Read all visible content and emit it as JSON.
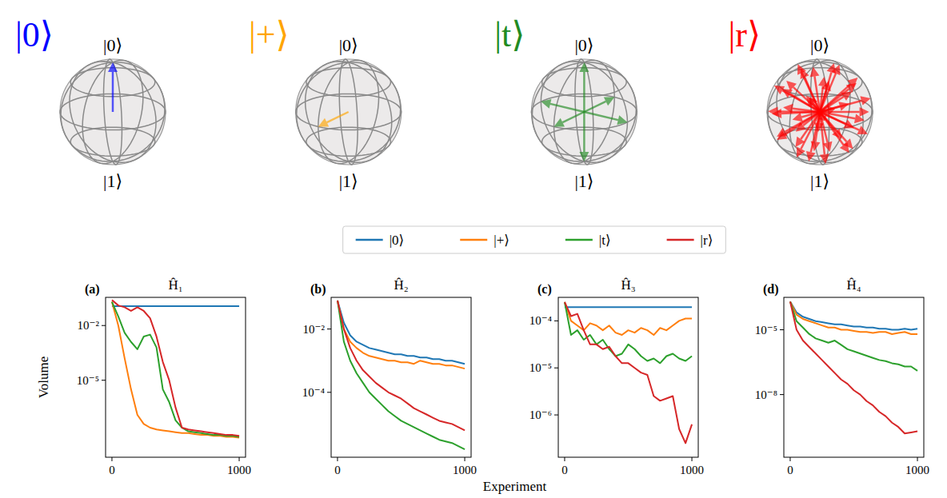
{
  "states": [
    {
      "label": "|0⟩",
      "color": "#0000ff",
      "north": "|0⟩",
      "south": "|1⟩"
    },
    {
      "label": "|+⟩",
      "color": "#ffa500",
      "north": "|0⟩",
      "south": "|1⟩"
    },
    {
      "label": "|t⟩",
      "color": "#228b22",
      "north": "|0⟩",
      "south": "|1⟩"
    },
    {
      "label": "|r⟩",
      "color": "#ff0000",
      "north": "|0⟩",
      "south": "|1⟩"
    }
  ],
  "x_label": "Experiment",
  "chart_data": [
    {
      "type": "line",
      "title": "Ĥ₁",
      "panel_label": "(a)",
      "y_label": "Volume",
      "log": "y",
      "legend": "top",
      "x": [
        0,
        50,
        100,
        150,
        200,
        250,
        300,
        350,
        400,
        450,
        500,
        550,
        600,
        650,
        700,
        750,
        800,
        850,
        900,
        950,
        1000
      ],
      "xlim": [
        -50,
        1050
      ],
      "xticks": [
        0,
        1000
      ],
      "ylim": [
        6e-10,
        0.35
      ],
      "yticks": [
        {
          "value": 0.01,
          "label": "10⁻²"
        },
        {
          "value": 1e-05,
          "label": "10⁻⁵"
        }
      ],
      "series": [
        {
          "name": "|0⟩",
          "color": "#1f77b4",
          "values": [
            0.115,
            0.115,
            0.115,
            0.115,
            0.115,
            0.115,
            0.115,
            0.115,
            0.115,
            0.115,
            0.115,
            0.115,
            0.115,
            0.115,
            0.115,
            0.115,
            0.115,
            0.115,
            0.115,
            0.115,
            0.115
          ]
        },
        {
          "name": "|+⟩",
          "color": "#ff7f0e",
          "values": [
            0.2,
            0.01,
            0.000158,
            3.16e-06,
            1.26e-07,
            3.98e-08,
            2.51e-08,
            2e-08,
            1.78e-08,
            1.58e-08,
            1.41e-08,
            1.26e-08,
            1.26e-08,
            1.12e-08,
            1e-08,
            1e-08,
            8.91e-09,
            8.91e-09,
            7.94e-09,
            7.94e-09,
            7.08e-09
          ]
        },
        {
          "name": "|t⟩",
          "color": "#2ca02c",
          "values": [
            0.2,
            0.0316,
            0.00398,
            0.00126,
            0.000501,
            0.00251,
            0.00316,
            0.000631,
            3.16e-06,
            6.31e-07,
            6.31e-08,
            2.51e-08,
            1.58e-08,
            1.41e-08,
            1.26e-08,
            1.12e-08,
            1e-08,
            1e-08,
            8.91e-09,
            8.91e-09,
            7.94e-09
          ]
        },
        {
          "name": "|r⟩",
          "color": "#d62728",
          "values": [
            0.251,
            0.126,
            0.1,
            0.0631,
            0.1,
            0.0631,
            0.0251,
            0.00251,
            0.0001,
            1e-05,
            3.16e-07,
            2.51e-08,
            2e-08,
            1.78e-08,
            1.58e-08,
            1.41e-08,
            1.26e-08,
            1.12e-08,
            1e-08,
            1e-08,
            8.91e-09
          ]
        }
      ]
    },
    {
      "type": "line",
      "title": "Ĥ₂",
      "panel_label": "(b)",
      "log": "y",
      "x": [
        0,
        50,
        100,
        150,
        200,
        250,
        300,
        350,
        400,
        450,
        500,
        550,
        600,
        650,
        700,
        750,
        800,
        850,
        900,
        950,
        1000
      ],
      "xlim": [
        -50,
        1050
      ],
      "xticks": [
        0,
        1000
      ],
      "ylim": [
        8.9e-07,
        0.1
      ],
      "yticks": [
        {
          "value": 0.01,
          "label": "10⁻²"
        },
        {
          "value": 0.0001,
          "label": "10⁻⁴"
        }
      ],
      "series": [
        {
          "name": "|0⟩",
          "color": "#1f77b4",
          "values": [
            0.0794,
            0.0158,
            0.00631,
            0.00398,
            0.00316,
            0.00251,
            0.00224,
            0.002,
            0.00178,
            0.00158,
            0.00158,
            0.00141,
            0.00141,
            0.00126,
            0.00126,
            0.00112,
            0.00112,
            0.001,
            0.001,
            0.000891,
            0.000794
          ]
        },
        {
          "name": "|+⟩",
          "color": "#ff7f0e",
          "values": [
            0.0794,
            0.01,
            0.00398,
            0.00251,
            0.00178,
            0.00141,
            0.00126,
            0.00112,
            0.001,
            0.001,
            0.000891,
            0.000891,
            0.000794,
            0.001,
            0.000891,
            0.000794,
            0.000794,
            0.000708,
            0.000708,
            0.000631,
            0.000562
          ]
        },
        {
          "name": "|t⟩",
          "color": "#2ca02c",
          "values": [
            0.0794,
            0.00398,
            0.001,
            0.000398,
            0.0002,
            0.0001,
            6.31e-05,
            3.98e-05,
            2.51e-05,
            1.78e-05,
            1.26e-05,
            1e-05,
            7.94e-06,
            6.31e-06,
            5.01e-06,
            3.98e-06,
            3.16e-06,
            2.82e-06,
            2.51e-06,
            2e-06,
            1.58e-06
          ]
        },
        {
          "name": "|r⟩",
          "color": "#d62728",
          "values": [
            0.0794,
            0.01,
            0.00251,
            0.001,
            0.000501,
            0.000316,
            0.0002,
            0.000141,
            0.0001,
            7.94e-05,
            6.31e-05,
            4.47e-05,
            3.16e-05,
            2.51e-05,
            2e-05,
            1.58e-05,
            1.26e-05,
            1.12e-05,
            1e-05,
            7.94e-06,
            6.31e-06
          ]
        }
      ]
    },
    {
      "type": "line",
      "title": "Ĥ₃",
      "panel_label": "(c)",
      "log": "y",
      "x": [
        0,
        50,
        100,
        150,
        200,
        250,
        300,
        350,
        400,
        450,
        500,
        550,
        600,
        650,
        700,
        750,
        800,
        850,
        900,
        950,
        1000
      ],
      "xlim": [
        -50,
        1050
      ],
      "xticks": [
        0,
        1000
      ],
      "ylim": [
        1.26e-07,
        0.000316
      ],
      "yticks": [
        {
          "value": 0.0001,
          "label": "10⁻⁴"
        },
        {
          "value": 1e-05,
          "label": "10⁻⁵"
        },
        {
          "value": 1e-06,
          "label": "10⁻⁶"
        }
      ],
      "series": [
        {
          "name": "|0⟩",
          "color": "#1f77b4",
          "values": [
            0.000195,
            0.000195,
            0.000195,
            0.000195,
            0.000195,
            0.000195,
            0.000195,
            0.000195,
            0.000195,
            0.000195,
            0.000195,
            0.000195,
            0.000195,
            0.000195,
            0.000195,
            0.000195,
            0.000195,
            0.000195,
            0.000195,
            0.000195,
            0.000195
          ]
        },
        {
          "name": "|+⟩",
          "color": "#ff7f0e",
          "values": [
            0.000251,
            0.0001,
            7.94e-05,
            6.31e-05,
            8.91e-05,
            7.94e-05,
            6.31e-05,
            7.94e-05,
            5.62e-05,
            5.01e-05,
            6.31e-05,
            5.62e-05,
            7.08e-05,
            6.31e-05,
            5.01e-05,
            7.08e-05,
            6.31e-05,
            7.94e-05,
            0.0001,
            0.000112,
            0.000112
          ]
        },
        {
          "name": "|t⟩",
          "color": "#2ca02c",
          "values": [
            0.000251,
            5.01e-05,
            6.31e-05,
            3.98e-05,
            5.01e-05,
            3.16e-05,
            3.98e-05,
            2.51e-05,
            1.78e-05,
            2e-05,
            3.16e-05,
            2.51e-05,
            1.78e-05,
            1.41e-05,
            1.58e-05,
            1.26e-05,
            1.78e-05,
            2e-05,
            1.58e-05,
            1.41e-05,
            1.78e-05
          ]
        },
        {
          "name": "|r⟩",
          "color": "#d62728",
          "values": [
            0.000251,
            0.000126,
            0.000141,
            6.31e-05,
            3.16e-05,
            3.16e-05,
            2.51e-05,
            2.82e-05,
            1.78e-05,
            1.26e-05,
            1.26e-05,
            1e-05,
            7.94e-06,
            7.08e-06,
            2.51e-06,
            2e-06,
            2.24e-06,
            2.51e-06,
            5.01e-07,
            2.51e-07,
            6.31e-07
          ]
        }
      ]
    },
    {
      "type": "line",
      "title": "Ĥ₄",
      "panel_label": "(d)",
      "log": "y",
      "x": [
        0,
        50,
        100,
        150,
        200,
        250,
        300,
        350,
        400,
        450,
        500,
        550,
        600,
        650,
        700,
        750,
        800,
        850,
        900,
        950,
        1000
      ],
      "xlim": [
        -50,
        1050
      ],
      "xticks": [
        0,
        1000
      ],
      "ylim": [
        1.26e-11,
        0.000316
      ],
      "yticks": [
        {
          "value": 1e-05,
          "label": "10⁻⁵"
        },
        {
          "value": 1e-08,
          "label": "10⁻⁸"
        }
      ],
      "series": [
        {
          "name": "|0⟩",
          "color": "#1f77b4",
          "values": [
            0.0002,
            6.31e-05,
            3.98e-05,
            3.16e-05,
            2.51e-05,
            2.24e-05,
            2e-05,
            1.78e-05,
            1.78e-05,
            1.58e-05,
            1.41e-05,
            1.41e-05,
            1.26e-05,
            1.26e-05,
            1.12e-05,
            1.12e-05,
            1e-05,
            1e-05,
            1.12e-05,
            1e-05,
            1.12e-05
          ]
        },
        {
          "name": "|+⟩",
          "color": "#ff7f0e",
          "values": [
            0.0002,
            5.01e-05,
            3.16e-05,
            2.51e-05,
            2e-05,
            1.58e-05,
            1.26e-05,
            1.26e-05,
            1e-05,
            1e-05,
            8.91e-06,
            7.94e-06,
            7.94e-06,
            7.08e-06,
            7.94e-06,
            7.94e-06,
            6.31e-06,
            7.08e-06,
            7.94e-06,
            6.31e-06,
            6.31e-06
          ]
        },
        {
          "name": "|t⟩",
          "color": "#2ca02c",
          "values": [
            0.0002,
            2.51e-05,
            1.26e-05,
            6.31e-06,
            3.98e-06,
            3.16e-06,
            2.51e-06,
            3.16e-06,
            2e-06,
            1.26e-06,
            1e-06,
            7.94e-07,
            6.31e-07,
            5.01e-07,
            3.98e-07,
            3.55e-07,
            2.82e-07,
            2.51e-07,
            2e-07,
            2e-07,
            1.26e-07
          ]
        },
        {
          "name": "|r⟩",
          "color": "#d62728",
          "values": [
            0.0002,
            1e-05,
            3.16e-06,
            1.58e-06,
            7.94e-07,
            3.98e-07,
            2e-07,
            1e-07,
            5.01e-08,
            3.16e-08,
            1.58e-08,
            1e-08,
            5.01e-09,
            3.16e-09,
            1.58e-09,
            1e-09,
            5.01e-10,
            3.16e-10,
            1.58e-10,
            1.78e-10,
            2e-10
          ]
        }
      ]
    }
  ]
}
